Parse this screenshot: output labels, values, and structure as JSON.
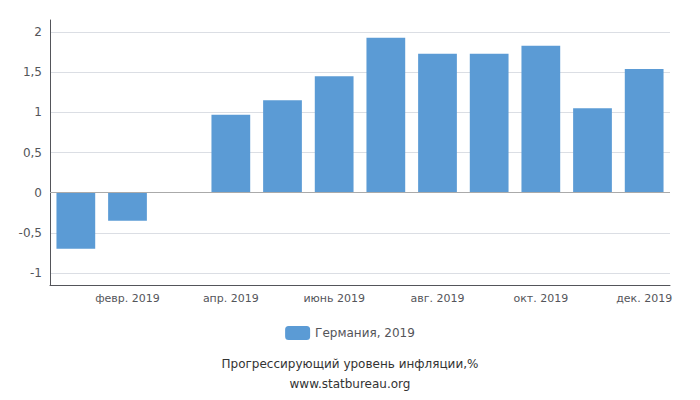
{
  "chart_data": {
    "type": "bar",
    "subtitle": "Прогрессирующий уровень инфляции,%",
    "annotations": [
      "www.statbureau.org"
    ],
    "categories": [
      null,
      "февр. 2019",
      null,
      "апр. 2019",
      null,
      "июнь 2019",
      null,
      "авг. 2019",
      null,
      "окт. 2019",
      null,
      "дек. 2019"
    ],
    "series": [
      {
        "name": "Германия, 2019",
        "color": "#5b9bd5",
        "values": [
          -0.7,
          -0.35,
          null,
          0.97,
          1.15,
          1.45,
          1.93,
          1.73,
          1.73,
          1.83,
          1.05,
          1.54
        ]
      }
    ],
    "ylim": [
      -1.15,
      2.15
    ],
    "yticks": [
      -1,
      {
        "value": -0.5,
        "label": "-0,5"
      },
      0,
      {
        "value": 0.5,
        "label": "0,5"
      },
      1,
      {
        "value": 1.5,
        "label": "1,5"
      },
      2
    ],
    "grid": true,
    "legend": "bottom"
  }
}
